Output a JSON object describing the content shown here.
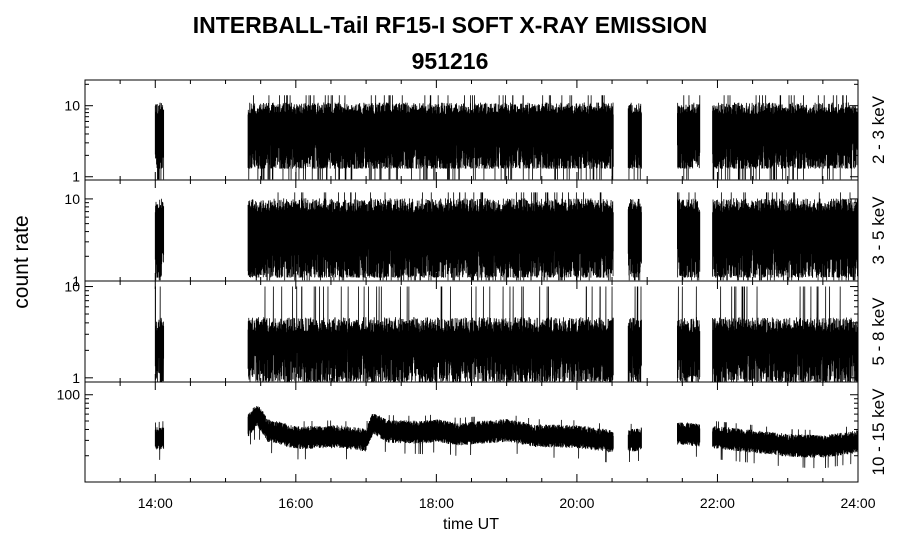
{
  "chart_data": {
    "type": "line",
    "title": "INTERBALL-Tail RF15-I SOFT X-RAY EMISSION",
    "subtitle": "951216",
    "xlabel": "time UT",
    "ylabel": "count rate",
    "x_unit": "hours UT",
    "xlim": [
      13.0,
      24.0
    ],
    "x_ticks": [
      14,
      16,
      18,
      20,
      22,
      24
    ],
    "x_tick_labels": [
      "14:00",
      "16:00",
      "18:00",
      "20:00",
      "22:00",
      "24:00"
    ],
    "yscale": "log",
    "grid": false,
    "data_segments_hours": [
      [
        14.0,
        14.12
      ],
      [
        15.32,
        20.52
      ],
      [
        20.73,
        20.92
      ],
      [
        21.43,
        21.75
      ],
      [
        21.93,
        24.0
      ]
    ],
    "panels": [
      {
        "name": "2 - 3 keV",
        "ylim": [
          0.9,
          23
        ],
        "y_ticks": [
          1,
          10
        ],
        "y_tick_labels": [
          "1",
          "10"
        ],
        "typical_count_rate": 6,
        "noise_floor": 1.3,
        "noise_peak": 14
      },
      {
        "name": "3 - 5 keV",
        "ylim": [
          1.0,
          17
        ],
        "y_ticks": [
          1,
          10
        ],
        "y_tick_labels": [
          "1",
          "10"
        ],
        "typical_count_rate": 5.5,
        "noise_floor": 1.1,
        "noise_peak": 12
      },
      {
        "name": "5 - 8 keV",
        "ylim": [
          0.9,
          11.5
        ],
        "y_ticks": [
          1,
          10
        ],
        "y_tick_labels": [
          "1",
          "10"
        ],
        "typical_count_rate": 2.5,
        "noise_floor": 0.9,
        "noise_peak": 10
      },
      {
        "name": "10 - 15 keV",
        "ylim": [
          10,
          140
        ],
        "y_ticks": [
          100
        ],
        "y_tick_labels": [
          "100"
        ],
        "typical_count_rate": 33,
        "trend": [
          [
            14.0,
            32
          ],
          [
            15.32,
            45
          ],
          [
            15.45,
            60
          ],
          [
            15.6,
            40
          ],
          [
            16.0,
            33
          ],
          [
            16.6,
            34
          ],
          [
            17.0,
            31
          ],
          [
            17.1,
            48
          ],
          [
            17.3,
            39
          ],
          [
            17.8,
            38
          ],
          [
            18.0,
            40
          ],
          [
            18.3,
            36
          ],
          [
            19.0,
            40
          ],
          [
            19.4,
            35
          ],
          [
            20.0,
            34
          ],
          [
            20.5,
            30
          ],
          [
            20.8,
            31
          ],
          [
            21.5,
            37
          ],
          [
            22.0,
            33
          ],
          [
            23.0,
            27
          ],
          [
            23.5,
            26
          ],
          [
            24.0,
            30
          ]
        ]
      }
    ]
  }
}
